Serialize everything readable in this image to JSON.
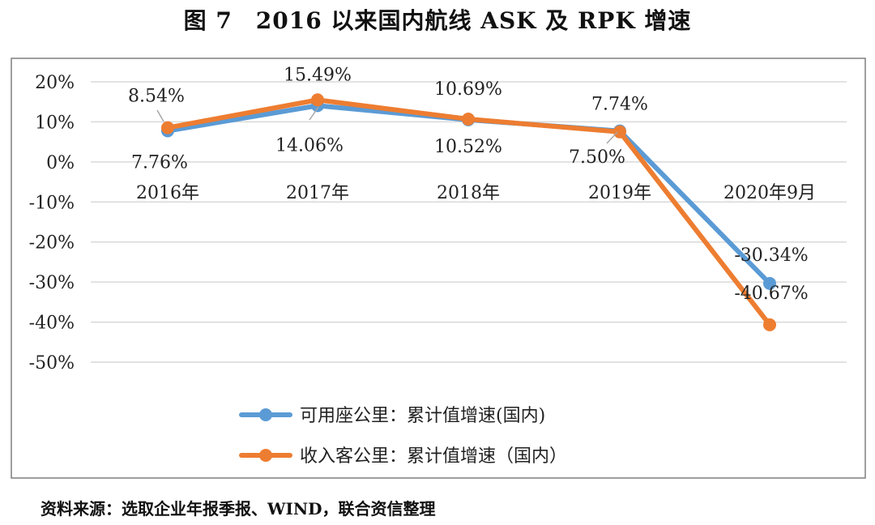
{
  "title": "图 7　2016 以来国内航线 ASK 及 RPK 增速",
  "source": "资料来源：选取企业年报季报、WIND，联合资信整理",
  "chart_data": {
    "type": "line",
    "categories": [
      "2016年",
      "2017年",
      "2018年",
      "2019年",
      "2020年9月"
    ],
    "ylim": [
      -50,
      20
    ],
    "yticks": [
      20,
      10,
      0,
      -10,
      -20,
      -30,
      -40,
      -50
    ],
    "ytick_labels": [
      "20%",
      "10%",
      "0%",
      "-10%",
      "-20%",
      "-30%",
      "-40%",
      "-50%"
    ],
    "grid": true,
    "legend_position": "bottom",
    "series": [
      {
        "name": "可用座公里：累计值增速(国内)",
        "color": "#5b9bd5",
        "values": [
          7.76,
          14.06,
          10.52,
          7.74,
          -30.34
        ],
        "labels": [
          "7.76%",
          "14.06%",
          "10.52%",
          "7.74%",
          "-30.34%"
        ]
      },
      {
        "name": "收入客公里：累计值增速（国内）",
        "color": "#ed7d31",
        "values": [
          8.54,
          15.49,
          10.69,
          7.5,
          -40.67
        ],
        "labels": [
          "8.54%",
          "15.49%",
          "10.69%",
          "7.50%",
          "-40.67%"
        ]
      }
    ]
  }
}
